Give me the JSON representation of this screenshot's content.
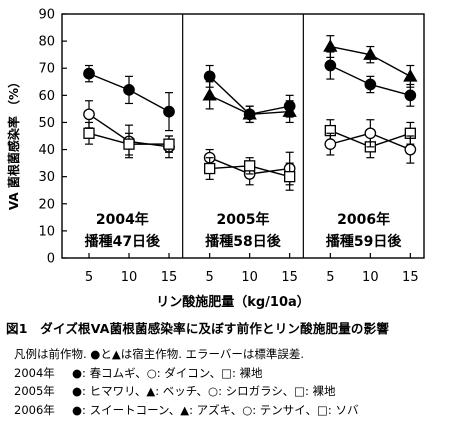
{
  "chart_data": {
    "type": "line",
    "ylabel": "VA 菌根菌感染率 （%）",
    "xlabel": "リン酸施肥量（kg/10a）",
    "ylim": [
      0,
      90
    ],
    "yticks": [
      0,
      10,
      20,
      30,
      40,
      50,
      60,
      70,
      80,
      90
    ],
    "x": [
      5,
      10,
      15
    ],
    "grid": false,
    "panels": [
      {
        "year_label": "2004年",
        "sowing_label": "播種47日後",
        "series": [
          {
            "marker": "filled-circle",
            "values": [
              68,
              62,
              54
            ],
            "errors": [
              3,
              5,
              7
            ]
          },
          {
            "marker": "open-circle",
            "values": [
              53,
              43,
              41
            ],
            "errors": [
              5,
              6,
              4
            ]
          },
          {
            "marker": "open-square",
            "values": [
              46,
              42,
              42
            ],
            "errors": [
              4,
              4,
              3
            ]
          }
        ]
      },
      {
        "year_label": "2005年",
        "sowing_label": "播種58日後",
        "series": [
          {
            "marker": "filled-circle",
            "values": [
              67,
              53,
              56
            ],
            "errors": [
              4,
              3,
              4
            ]
          },
          {
            "marker": "filled-triangle",
            "values": [
              60,
              53,
              54
            ],
            "errors": [
              5,
              3,
              4
            ]
          },
          {
            "marker": "open-circle",
            "values": [
              37,
              31,
              33
            ],
            "errors": [
              3,
              4,
              6
            ]
          },
          {
            "marker": "open-square",
            "values": [
              33,
              34,
              30
            ],
            "errors": [
              4,
              3,
              5
            ]
          }
        ]
      },
      {
        "year_label": "2006年",
        "sowing_label": "播種59日後",
        "series": [
          {
            "marker": "filled-triangle",
            "values": [
              78,
              75,
              67
            ],
            "errors": [
              4,
              3,
              4
            ]
          },
          {
            "marker": "filled-circle",
            "values": [
              71,
              64,
              60
            ],
            "errors": [
              5,
              3,
              4
            ]
          },
          {
            "marker": "open-square",
            "values": [
              47,
              41,
              46
            ],
            "errors": [
              4,
              4,
              4
            ]
          },
          {
            "marker": "open-circle",
            "values": [
              42,
              46,
              40
            ],
            "errors": [
              4,
              5,
              5
            ]
          }
        ]
      }
    ]
  },
  "caption": "図1　ダイズ根VA菌根菌感染率に及ぼす前作とリン酸施肥量の影響",
  "legend": {
    "intro": "凡例は前作物. ●と▲は宿主作物. エラーバーは標準誤差.",
    "rows": [
      {
        "year": "2004年",
        "text": "●: 春コムギ、○: ダイコン、□: 裸地"
      },
      {
        "year": "2005年",
        "text": "●: ヒマワリ、▲: ベッチ、○: シロガラシ、□: 裸地"
      },
      {
        "year": "2006年",
        "text": "●: スイートコーン、▲: アズキ、○: テンサイ、□: ソバ"
      }
    ]
  }
}
